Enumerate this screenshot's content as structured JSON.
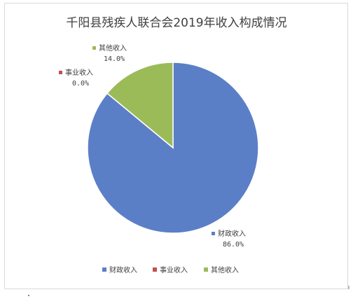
{
  "chart_data": {
    "type": "pie",
    "title": "千阳县残疾人联合会2019年收入构成情况",
    "slices": [
      {
        "name": "财政收入",
        "value": 86.0,
        "label": "86.0%",
        "color": "#5b7fc7"
      },
      {
        "name": "事业收入",
        "value": 0.0,
        "label": "0.0%",
        "color": "#c0504d"
      },
      {
        "name": "其他收入",
        "value": 14.0,
        "label": "14.0%",
        "color": "#9bbb59"
      }
    ],
    "legend_position": "bottom"
  }
}
